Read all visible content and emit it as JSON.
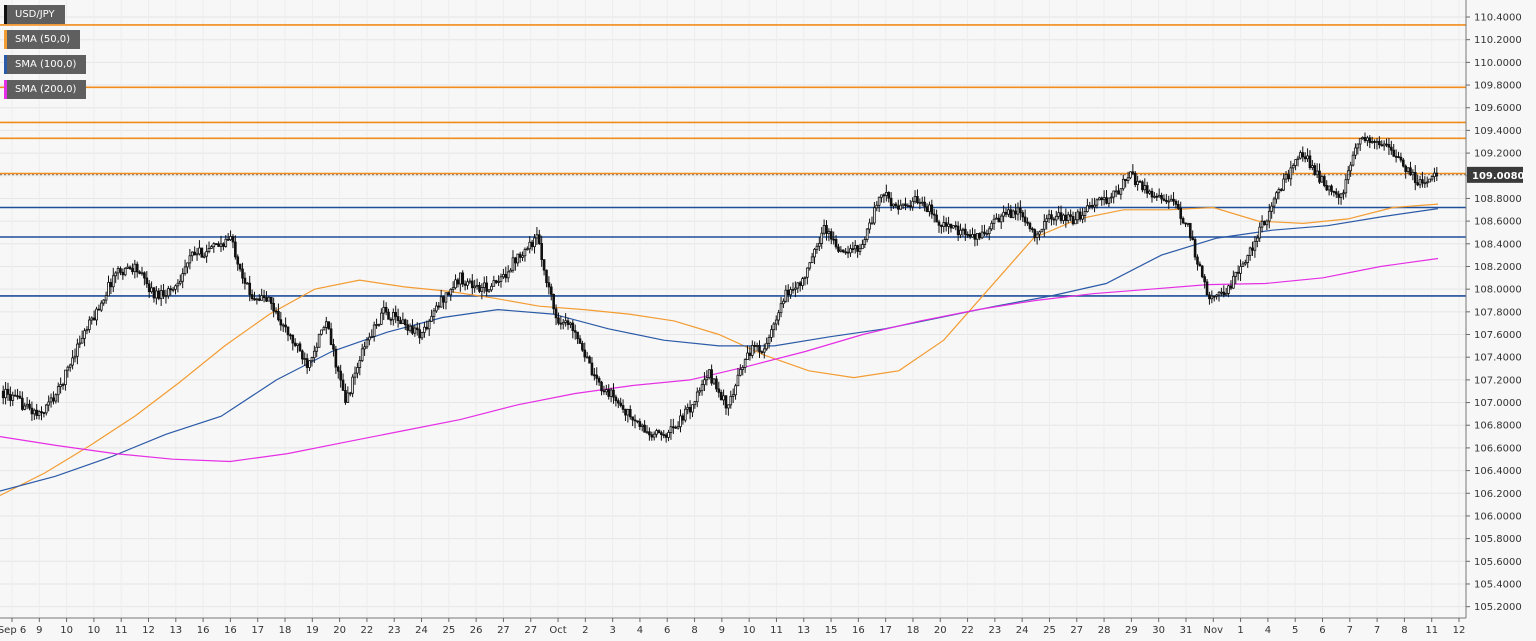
{
  "legend": [
    {
      "label": "USD/JPY",
      "color": "#111111"
    },
    {
      "label": "SMA (50,0)",
      "color": "#f39c32"
    },
    {
      "label": "SMA (100,0)",
      "color": "#2b5aa7"
    },
    {
      "label": "SMA (200,0)",
      "color": "#e52ee5"
    }
  ],
  "current_price": {
    "value": 109.008,
    "label": "109.0080"
  },
  "chart_data": {
    "type": "candlestick",
    "symbol": "USD/JPY",
    "ylim": [
      105.1,
      110.55
    ],
    "grid": true,
    "y_ticks": [
      "105.2000",
      "105.4000",
      "105.6000",
      "105.8000",
      "106.0000",
      "106.2000",
      "106.4000",
      "106.6000",
      "106.8000",
      "107.0000",
      "107.2000",
      "107.4000",
      "107.6000",
      "107.8000",
      "108.0000",
      "108.2000",
      "108.4000",
      "108.6000",
      "108.8000",
      "109.0000",
      "109.2000",
      "109.4000",
      "109.6000",
      "109.8000",
      "110.0000",
      "110.2000",
      "110.4000"
    ],
    "x_ticks": [
      "Sep 6",
      "9",
      "10",
      "10",
      "11",
      "12",
      "13",
      "16",
      "16",
      "17",
      "18",
      "19",
      "20",
      "22",
      "23",
      "24",
      "25",
      "26",
      "27",
      "27",
      "Oct",
      "2",
      "3",
      "4",
      "6",
      "8",
      "9",
      "10",
      "11",
      "13",
      "15",
      "16",
      "17",
      "18",
      "20",
      "22",
      "23",
      "24",
      "25",
      "27",
      "28",
      "29",
      "30",
      "31",
      "Nov",
      "1",
      "4",
      "5",
      "6",
      "7",
      "7",
      "8",
      "11",
      "12"
    ],
    "resistance_levels": [
      110.33,
      109.78,
      109.47,
      109.33,
      109.02
    ],
    "support_levels": [
      108.72,
      108.46,
      107.94
    ],
    "sma_50": [
      106.18,
      106.38,
      106.62,
      106.88,
      107.18,
      107.5,
      107.78,
      108.0,
      108.08,
      108.02,
      107.98,
      107.92,
      107.85,
      107.82,
      107.78,
      107.72,
      107.6,
      107.42,
      107.28,
      107.22,
      107.28,
      107.55,
      108.0,
      108.45,
      108.62,
      108.7,
      108.7,
      108.72,
      108.6,
      108.58,
      108.62,
      108.72,
      108.75
    ],
    "sma_100": [
      106.22,
      106.35,
      106.52,
      106.72,
      106.88,
      107.2,
      107.45,
      107.62,
      107.75,
      107.82,
      107.78,
      107.65,
      107.55,
      107.5,
      107.5,
      107.58,
      107.65,
      107.75,
      107.85,
      107.94,
      108.05,
      108.3,
      108.45,
      108.52,
      108.56,
      108.64,
      108.71
    ],
    "sma_200": [
      106.7,
      106.62,
      106.55,
      106.5,
      106.48,
      106.55,
      106.65,
      106.75,
      106.85,
      106.98,
      107.08,
      107.15,
      107.2,
      107.32,
      107.45,
      107.6,
      107.72,
      107.82,
      107.9,
      107.96,
      108.0,
      108.04,
      108.05,
      108.1,
      108.2,
      108.27
    ],
    "candle_path": [
      107.1,
      107.0,
      106.88,
      107.1,
      107.5,
      107.8,
      108.15,
      108.2,
      107.95,
      108.0,
      108.3,
      108.35,
      108.45,
      107.95,
      107.9,
      107.6,
      107.35,
      107.7,
      107.0,
      107.5,
      107.8,
      107.7,
      107.6,
      107.9,
      108.1,
      108.0,
      108.05,
      108.3,
      108.45,
      107.75,
      107.65,
      107.2,
      107.05,
      106.85,
      106.7,
      106.75,
      106.95,
      107.25,
      106.95,
      107.45,
      107.5,
      107.95,
      108.1,
      108.55,
      108.3,
      108.4,
      108.85,
      108.7,
      108.8,
      108.6,
      108.5,
      108.45,
      108.6,
      108.7,
      108.5,
      108.65,
      108.6,
      108.75,
      108.8,
      109.0,
      108.85,
      108.8,
      108.55,
      107.95,
      107.98,
      108.25,
      108.6,
      108.95,
      109.2,
      108.95,
      108.8,
      109.35,
      109.3,
      109.15,
      108.95,
      109.0
    ]
  }
}
